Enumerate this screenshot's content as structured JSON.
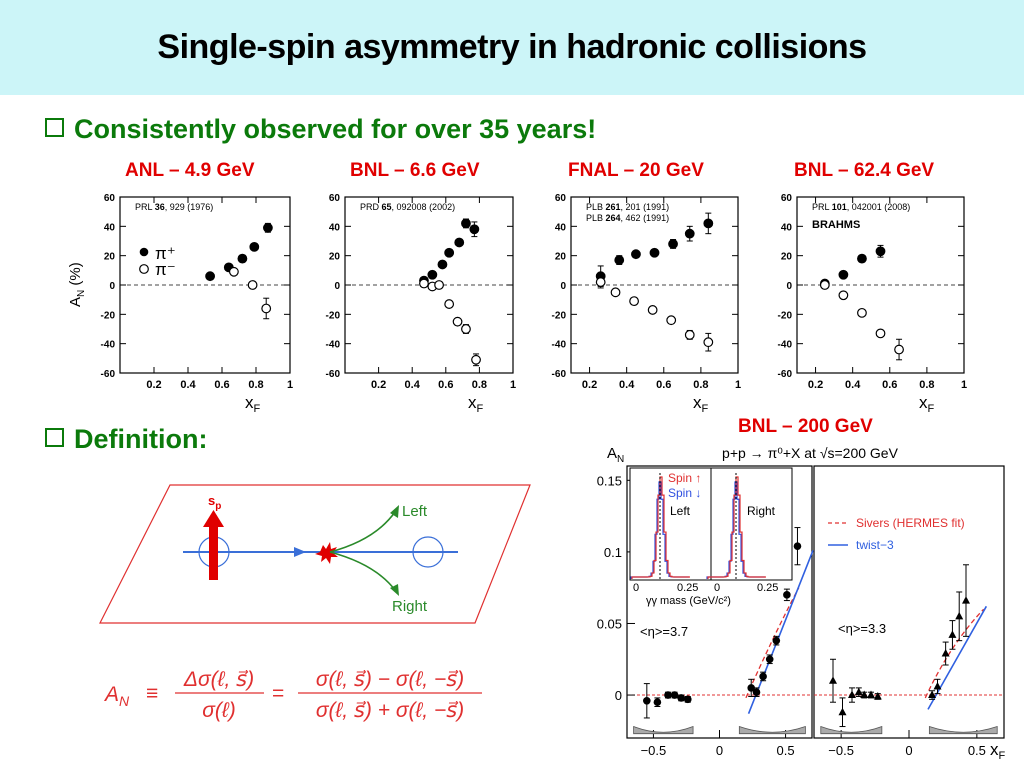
{
  "slide": {
    "title": "Single-spin asymmetry in hadronic collisions",
    "bullet1": "Consistently observed for over 35 years!",
    "bullet2": "Definition:"
  },
  "panel_labels": [
    "ANL – 4.9 GeV",
    "BNL – 6.6 GeV",
    "FNAL – 20 GeV",
    "BNL – 62.4 GeV",
    "BNL – 200 GeV"
  ],
  "references": [
    {
      "pre": "PRL ",
      "bold": "36",
      "post": ", 929 (1976)"
    },
    {
      "pre": "PRD ",
      "bold": "65",
      "post": ", 092008 (2002)"
    },
    {
      "pre": "PLB ",
      "bold": "261",
      "post": ", 201 (1991)",
      "pre2": "PLB ",
      "bold2": "264",
      "post2": ", 462 (1991)"
    },
    {
      "pre": "PRL ",
      "bold": "101",
      "post": ", 042001 (2008)",
      "extra": "BRAHMS"
    }
  ],
  "legend": {
    "pi_plus": "π⁺",
    "pi_minus": "π⁻"
  },
  "diagram": {
    "spin_label": "s",
    "spin_sub": "p",
    "left_label": "Left",
    "right_label": "Right"
  },
  "formula": {
    "lhs": "A",
    "sub": "N",
    "equiv": "≡",
    "num1": "Δσ(ℓ, s⃗)",
    "den1": "σ(ℓ)",
    "eq": "=",
    "num2": "σ(ℓ, s⃗) − σ(ℓ, −s⃗)",
    "den2": "σ(ℓ, s⃗) + σ(ℓ, −s⃗)"
  },
  "colors": {
    "title_bg": "#ccf5f8",
    "bullet": "#0b7a0b",
    "panel_label": "#e00000",
    "plane": "#e03030",
    "arrow_red": "#e00000",
    "beam": "#3a6fd8",
    "green": "#2a8a2a",
    "sivers": "#e03030",
    "twist3": "#3060e0"
  },
  "chart_data": [
    {
      "type": "scatter",
      "xlabel": "X_F",
      "ylabel": "A_N (%)",
      "xlim": [
        0,
        1
      ],
      "ylim": [
        -60,
        60
      ],
      "xticks": [
        "0.2",
        "0.4",
        "0.6",
        "0.8",
        "1"
      ],
      "yticks": [
        "60",
        "40",
        "20",
        "0",
        "-20",
        "-40",
        "-60"
      ],
      "series": [
        {
          "name": "π⁺",
          "points": [
            [
              0.53,
              6,
              1
            ],
            [
              0.64,
              12,
              1
            ],
            [
              0.72,
              18,
              1
            ],
            [
              0.79,
              26,
              2
            ],
            [
              0.87,
              39,
              3
            ]
          ]
        },
        {
          "name": "π⁻",
          "points": [
            [
              0.67,
              9,
              1
            ],
            [
              0.78,
              0,
              1
            ],
            [
              0.86,
              -16,
              7
            ]
          ]
        }
      ]
    },
    {
      "type": "scatter",
      "xlabel": "X_F",
      "ylabel": "",
      "xlim": [
        0,
        1
      ],
      "ylim": [
        -60,
        60
      ],
      "xticks": [
        "0.2",
        "0.4",
        "0.6",
        "0.8",
        "1"
      ],
      "yticks": [
        "60",
        "40",
        "20",
        "0",
        "-20",
        "-40",
        "-60"
      ],
      "series": [
        {
          "name": "π⁺",
          "points": [
            [
              0.47,
              3,
              1
            ],
            [
              0.52,
              7,
              1
            ],
            [
              0.58,
              14,
              1
            ],
            [
              0.62,
              22,
              1
            ],
            [
              0.68,
              29,
              2
            ],
            [
              0.72,
              42,
              3
            ],
            [
              0.77,
              38,
              5
            ]
          ]
        },
        {
          "name": "π⁻",
          "points": [
            [
              0.47,
              1,
              1
            ],
            [
              0.52,
              -1,
              1
            ],
            [
              0.56,
              0,
              1
            ],
            [
              0.62,
              -13,
              1
            ],
            [
              0.67,
              -25,
              2
            ],
            [
              0.72,
              -30,
              3
            ],
            [
              0.78,
              -51,
              4
            ]
          ]
        }
      ]
    },
    {
      "type": "scatter",
      "xlabel": "X_F",
      "ylabel": "",
      "xlim": [
        0.1,
        1
      ],
      "ylim": [
        -60,
        60
      ],
      "xticks": [
        "0.2",
        "0.4",
        "0.6",
        "0.8",
        "1"
      ],
      "yticks": [
        "60",
        "40",
        "20",
        "0",
        "-20",
        "-40",
        "-60"
      ],
      "series": [
        {
          "name": "π⁺",
          "points": [
            [
              0.26,
              6,
              7
            ],
            [
              0.36,
              17,
              3
            ],
            [
              0.45,
              21,
              2
            ],
            [
              0.55,
              22,
              2
            ],
            [
              0.65,
              28,
              3
            ],
            [
              0.74,
              35,
              5
            ],
            [
              0.84,
              42,
              7
            ]
          ]
        },
        {
          "name": "π⁻",
          "points": [
            [
              0.26,
              2,
              4
            ],
            [
              0.34,
              -5,
              2
            ],
            [
              0.44,
              -11,
              2
            ],
            [
              0.54,
              -17,
              2
            ],
            [
              0.64,
              -24,
              2
            ],
            [
              0.74,
              -34,
              3
            ],
            [
              0.84,
              -39,
              6
            ]
          ]
        }
      ]
    },
    {
      "type": "scatter",
      "xlabel": "X_F",
      "ylabel": "",
      "xlim": [
        0.1,
        1
      ],
      "ylim": [
        -60,
        60
      ],
      "xticks": [
        "0.2",
        "0.4",
        "0.6",
        "0.8",
        "1"
      ],
      "yticks": [
        "60",
        "40",
        "20",
        "0",
        "-20",
        "-40",
        "-60"
      ],
      "series": [
        {
          "name": "π⁺",
          "points": [
            [
              0.25,
              1,
              1
            ],
            [
              0.35,
              7,
              1
            ],
            [
              0.45,
              18,
              2
            ],
            [
              0.55,
              23,
              4
            ]
          ]
        },
        {
          "name": "π⁻",
          "points": [
            [
              0.25,
              0,
              1
            ],
            [
              0.35,
              -7,
              1
            ],
            [
              0.45,
              -19,
              2
            ],
            [
              0.55,
              -33,
              2
            ],
            [
              0.65,
              -44,
              7
            ]
          ]
        }
      ]
    },
    {
      "type": "scatter",
      "title": "p+p → π⁰+X at √s=200 GeV",
      "ylabel": "A_N",
      "xlabel": "X_F",
      "yticks": [
        "0.15",
        "0.1",
        "0.05",
        "0"
      ],
      "left_panel": {
        "label": "<η>=3.7",
        "xlim": [
          -0.7,
          0.7
        ],
        "ylim": [
          -0.03,
          0.16
        ],
        "xticks": [
          "−0.5",
          "0",
          "0.5"
        ],
        "points": [
          [
            -0.55,
            -0.004,
            0.012
          ],
          [
            -0.47,
            -0.005,
            0.003
          ],
          [
            -0.39,
            0.0,
            0.002
          ],
          [
            -0.34,
            0.0,
            0.002
          ],
          [
            -0.29,
            -0.002,
            0.002
          ],
          [
            -0.24,
            -0.003,
            0.002
          ],
          [
            0.24,
            0.005,
            0.006
          ],
          [
            0.28,
            0.002,
            0.003
          ],
          [
            0.33,
            0.013,
            0.003
          ],
          [
            0.38,
            0.025,
            0.003
          ],
          [
            0.43,
            0.038,
            0.003
          ],
          [
            0.51,
            0.07,
            0.004
          ],
          [
            0.59,
            0.104,
            0.013
          ]
        ]
      },
      "right_panel": {
        "label": "<η>=3.3",
        "xlim": [
          -0.7,
          0.7
        ],
        "xticks": [
          "−0.5",
          "0",
          "0.5"
        ],
        "points": [
          [
            -0.56,
            0.01,
            0.015
          ],
          [
            -0.49,
            -0.012,
            0.01
          ],
          [
            -0.42,
            0.0,
            0.005
          ],
          [
            -0.37,
            0.002,
            0.003
          ],
          [
            -0.33,
            0.0,
            0.002
          ],
          [
            -0.28,
            0.0,
            0.002
          ],
          [
            -0.23,
            -0.001,
            0.002
          ],
          [
            0.17,
            0.0,
            0.003
          ],
          [
            0.21,
            0.006,
            0.005
          ],
          [
            0.27,
            0.029,
            0.008
          ],
          [
            0.32,
            0.042,
            0.01
          ],
          [
            0.37,
            0.055,
            0.017
          ],
          [
            0.42,
            0.066,
            0.025
          ]
        ]
      },
      "legend": [
        "Sivers (HERMES fit)",
        "twist−3"
      ],
      "inset": {
        "legend": [
          "Spin ↑",
          "Spin ↓"
        ],
        "left_label": "Left",
        "right_label": "Right",
        "xlabel": "γγ mass (GeV/c²)",
        "xticks": [
          "0",
          "0.25",
          "0",
          "0.25"
        ]
      }
    }
  ]
}
